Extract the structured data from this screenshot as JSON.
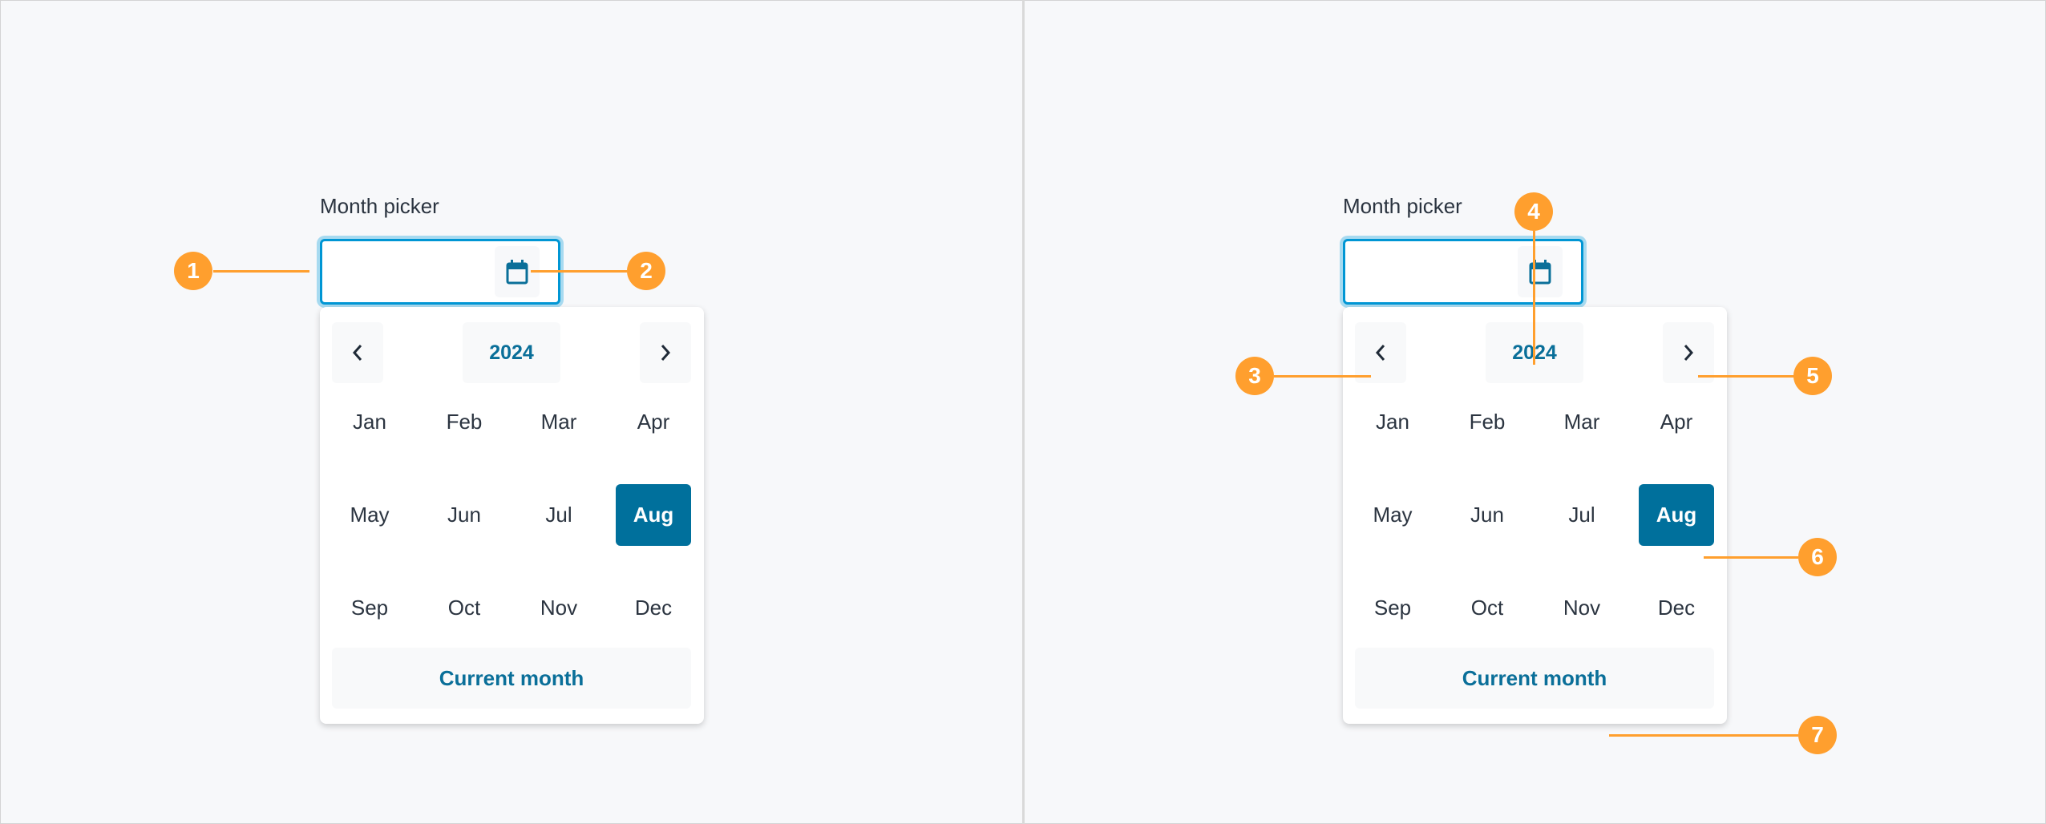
{
  "picker": {
    "label": "Month picker",
    "input_value": "",
    "calendar_icon": "calendar-icon",
    "prev_icon": "chevron-left-icon",
    "next_icon": "chevron-right-icon",
    "year": "2024",
    "months": [
      "Jan",
      "Feb",
      "Mar",
      "Apr",
      "May",
      "Jun",
      "Jul",
      "Aug",
      "Sep",
      "Oct",
      "Nov",
      "Dec"
    ],
    "selected_month": "Aug",
    "current_month_label": "Current month"
  },
  "annotations": [
    "1",
    "2",
    "3",
    "4",
    "5",
    "6",
    "7"
  ],
  "colors": {
    "accent": "#00709c",
    "focus_border": "#0096d4",
    "annotation": "#ff9f2e",
    "background": "#f7f8fa"
  }
}
